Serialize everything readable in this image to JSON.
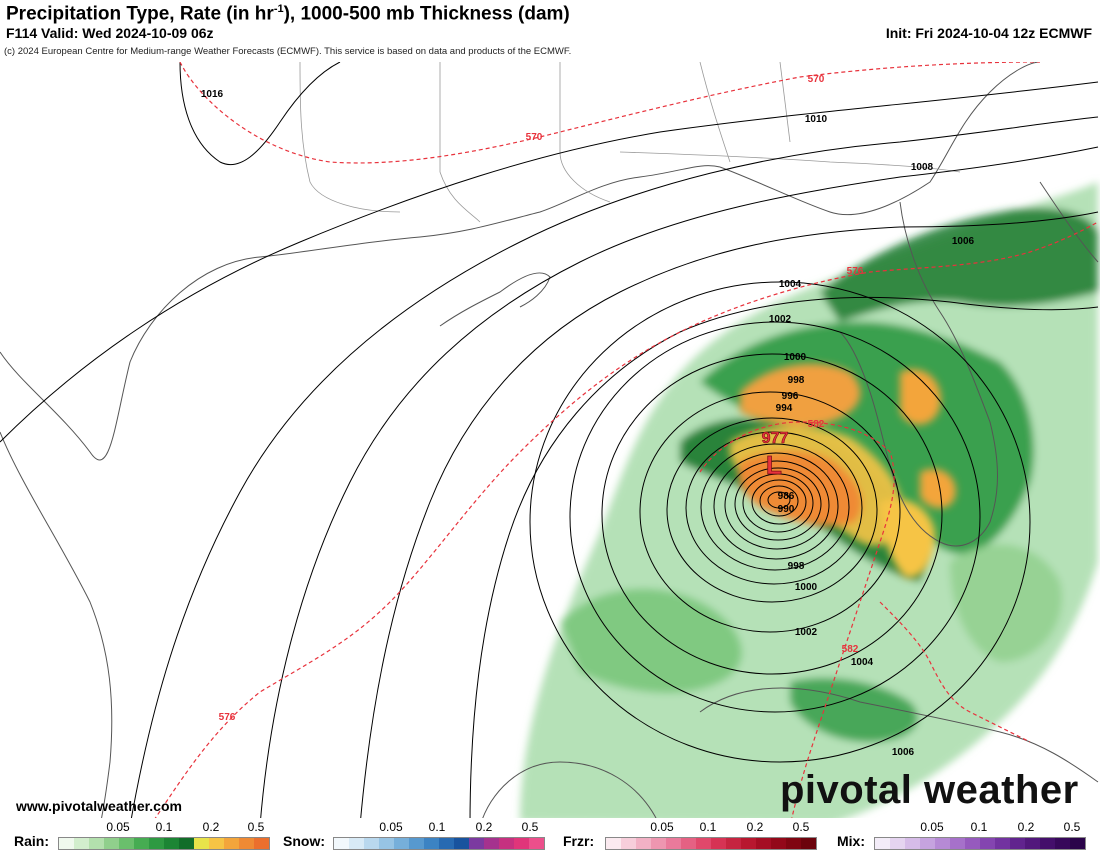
{
  "header": {
    "title_main": "Precipitation Type, Rate (in hr",
    "title_sup": "-1",
    "title_tail": "), 1000-500 mb Thickness (dam)",
    "valid": "F114 Valid: Wed 2024-10-09 06z",
    "init": "Init: Fri 2024-10-04 12z ECMWF",
    "copyright": "(c) 2024 European Centre for Medium-range Weather Forecasts (ECMWF). This service is based on data and products of the ECMWF."
  },
  "map": {
    "low_center": {
      "pressure": "977",
      "symbol": "L",
      "color": "#e8323c"
    },
    "isobar_labels": [
      "1016",
      "1010",
      "1008",
      "1006",
      "1004",
      "1002",
      "1000",
      "998",
      "996",
      "994",
      "986",
      "990",
      "998",
      "1000",
      "1002",
      "1004",
      "1006"
    ],
    "thickness_labels": [
      "570",
      "570",
      "576",
      "582",
      "582",
      "576"
    ],
    "colors": {
      "isobar": "#000000",
      "thickness": "#e8323c",
      "coast": "#555555",
      "rain_light": "#a8dcaa",
      "rain_mid": "#4caf50",
      "rain_heavy": "#1b7a2e",
      "rate_yellow": "#f0d060",
      "rate_orange": "#f0a040"
    }
  },
  "footer": {
    "website": "www.pivotalweather.com",
    "brand": "pivotal weather"
  },
  "legend": [
    {
      "name": "Rain:",
      "ticks": [
        "0.05",
        "0.1",
        "0.2",
        "0.5"
      ],
      "colors": [
        "#f0f9ee",
        "#d2eecd",
        "#b3e0ad",
        "#90cf8c",
        "#6abf6c",
        "#46ac52",
        "#2e9a42",
        "#1c8534",
        "#116d29",
        "#e8e34a",
        "#f6c445",
        "#f3a53b",
        "#ef8a34",
        "#eb6f2d"
      ]
    },
    {
      "name": "Snow:",
      "ticks": [
        "0.05",
        "0.1",
        "0.2",
        "0.5"
      ],
      "colors": [
        "#f2f8fc",
        "#d8eaf6",
        "#b9d8ee",
        "#97c4e4",
        "#76afda",
        "#5799cf",
        "#3c83c3",
        "#276ab2",
        "#18539e",
        "#7b3aa0",
        "#a5328e",
        "#c63180",
        "#e0357a",
        "#ec4f8b"
      ]
    },
    {
      "name": "Frzr:",
      "ticks": [
        "0.05",
        "0.1",
        "0.2",
        "0.5"
      ],
      "colors": [
        "#fbeaf0",
        "#f7cedb",
        "#f2b1c5",
        "#ee96b0",
        "#ea7a9b",
        "#e56183",
        "#e0486b",
        "#d63354",
        "#c62440",
        "#b8172f",
        "#a50d23",
        "#930819",
        "#800511",
        "#6c030c"
      ]
    },
    {
      "name": "Mix:",
      "ticks": [
        "0.05",
        "0.1",
        "0.2",
        "0.5"
      ],
      "colors": [
        "#f3ecf8",
        "#e5d4f0",
        "#d6bce8",
        "#c6a3df",
        "#b68ad5",
        "#a671ca",
        "#965abe",
        "#8445b0",
        "#7233a0",
        "#61248e",
        "#52187c",
        "#440f6b",
        "#37085a",
        "#2b044a"
      ]
    }
  ]
}
